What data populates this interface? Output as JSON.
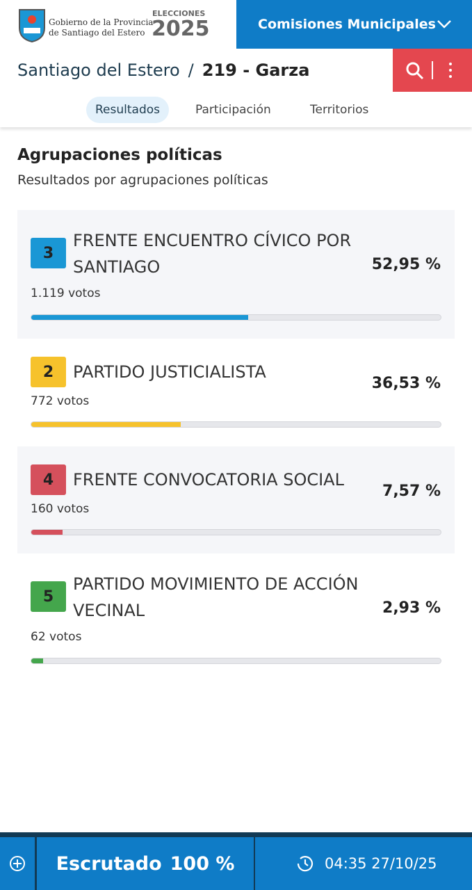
{
  "header": {
    "logo_line1": "Gobierno de la Provincia",
    "logo_line2": "de Santiago del Estero",
    "elections_label": "ELECCIONES",
    "year": "2025",
    "menu": "Comisiones Municipales"
  },
  "breadcrumb": {
    "province": "Santiago del Estero",
    "separator": "/",
    "district": "219 - Garza"
  },
  "tabs": [
    "Resultados",
    "Participación",
    "Territorios"
  ],
  "section": {
    "title": "Agrupaciones políticas",
    "subtitle": "Resultados por agrupaciones políticas"
  },
  "results": [
    {
      "number": "3",
      "name": "FRENTE ENCUENTRO CÍVICO POR SANTIAGO",
      "votes": "1.119 votos",
      "percent": 52.95,
      "percent_label": "52,95 %",
      "color": "#1a97d5"
    },
    {
      "number": "2",
      "name": "PARTIDO JUSTICIALISTA",
      "votes": "772 votos",
      "percent": 36.53,
      "percent_label": "36,53 %",
      "color": "#f6c22c"
    },
    {
      "number": "4",
      "name": "FRENTE CONVOCATORIA SOCIAL",
      "votes": "160 votos",
      "percent": 7.57,
      "percent_label": "7,57 %",
      "color": "#d5505c"
    },
    {
      "number": "5",
      "name": "PARTIDO MOVIMIENTO DE ACCIÓN VECINAL",
      "votes": "62 votos",
      "percent": 2.93,
      "percent_label": "2,93 %",
      "color": "#44a64c"
    }
  ],
  "footer": {
    "scrutiny_label": "Escrutado",
    "scrutiny_value": "100 %",
    "timestamp": "04:35 27/10/25"
  }
}
